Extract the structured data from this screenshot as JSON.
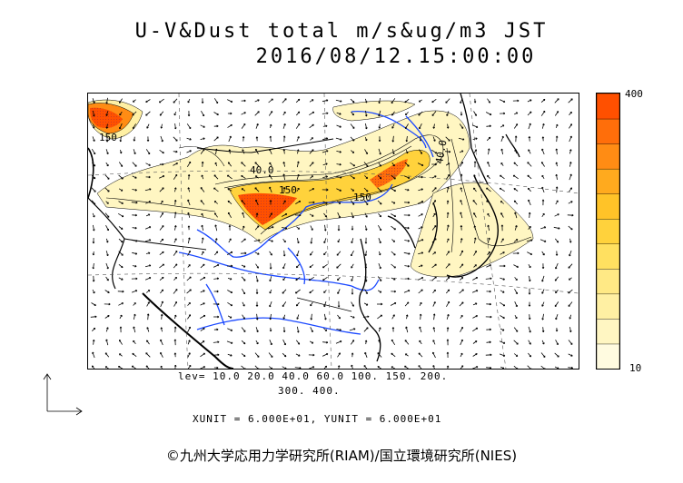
{
  "header": {
    "title_line1": "U-V&Dust total m/s&ug/m3 JST",
    "title_line2": "2016/08/12.15:00:00"
  },
  "colorbar": {
    "max_label": "400",
    "min_label": "10",
    "colors": [
      "#fffbe0",
      "#fff6c2",
      "#fff0a3",
      "#ffe985",
      "#ffe060",
      "#ffd23c",
      "#ffc328",
      "#ffaa1e",
      "#ff8c14",
      "#ff6e0a",
      "#ff5000"
    ]
  },
  "levels": {
    "line1": "lev= 10.0 20.0 40.0 60.0 100. 150. 200.",
    "line2": "300. 400."
  },
  "units": {
    "text": "XUNIT = 6.000E+01, YUNIT = 6.000E+01"
  },
  "map": {
    "contour_labels": [
      "40.0",
      "150",
      "150",
      "40.0",
      "150"
    ],
    "colors": {
      "land_line": "#000000",
      "river": "#1a48ff",
      "dust_low": "#fff6c2",
      "dust_mid": "#ffd23c",
      "dust_high": "#ff5000"
    }
  },
  "footer": {
    "copyright": "©九州大学応用力学研究所(RIAM)/国立環境研究所(NIES)"
  }
}
